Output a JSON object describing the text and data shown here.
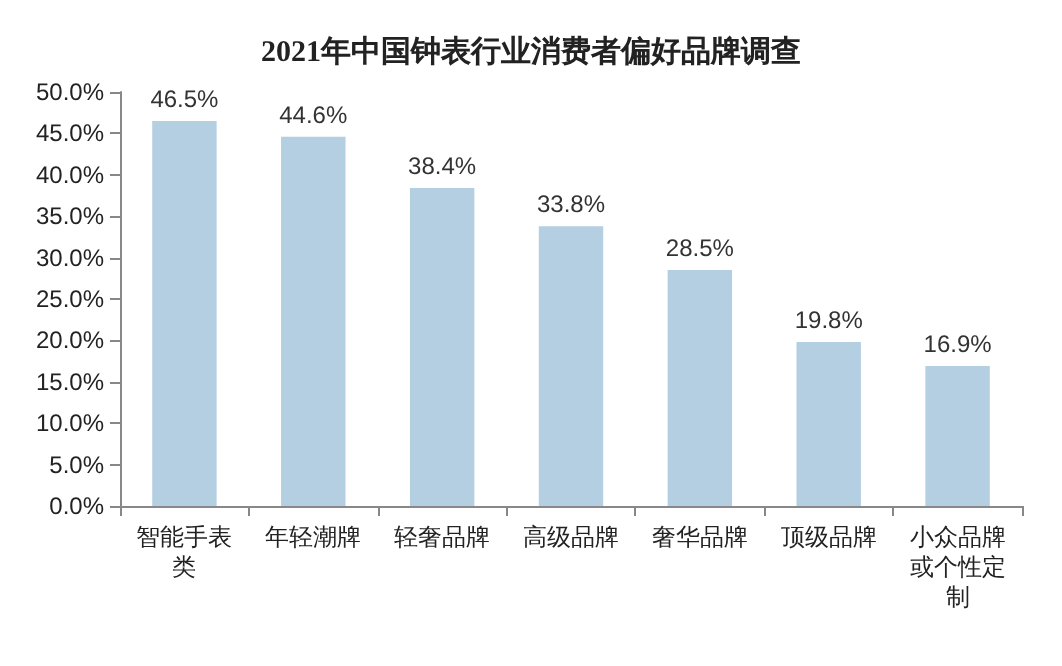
{
  "chart_data": {
    "type": "bar",
    "title": "2021年中国钟表行业消费者偏好品牌调查",
    "categories": [
      "智能手表类",
      "年轻潮牌",
      "轻奢品牌",
      "高级品牌",
      "奢华品牌",
      "顶级品牌",
      "小众品牌或个性定制"
    ],
    "values": [
      46.5,
      44.6,
      38.4,
      33.8,
      28.5,
      19.8,
      16.9
    ],
    "value_labels": [
      "46.5%",
      "44.6%",
      "38.4%",
      "33.8%",
      "28.5%",
      "19.8%",
      "16.9%"
    ],
    "color": "#b4cee2",
    "ylim": [
      0,
      50
    ],
    "yticks": [
      {
        "value": 0,
        "label": "0.0%"
      },
      {
        "value": 5,
        "label": "5.0%"
      },
      {
        "value": 10,
        "label": "10.0%"
      },
      {
        "value": 15,
        "label": "15.0%"
      },
      {
        "value": 20,
        "label": "20.0%"
      },
      {
        "value": 25,
        "label": "25.0%"
      },
      {
        "value": 30,
        "label": "30.0%"
      },
      {
        "value": 35,
        "label": "35.0%"
      },
      {
        "value": 40,
        "label": "40.0%"
      },
      {
        "value": 45,
        "label": "45.0%"
      },
      {
        "value": 50,
        "label": "50.0%"
      }
    ],
    "tick_labels": "xy"
  }
}
